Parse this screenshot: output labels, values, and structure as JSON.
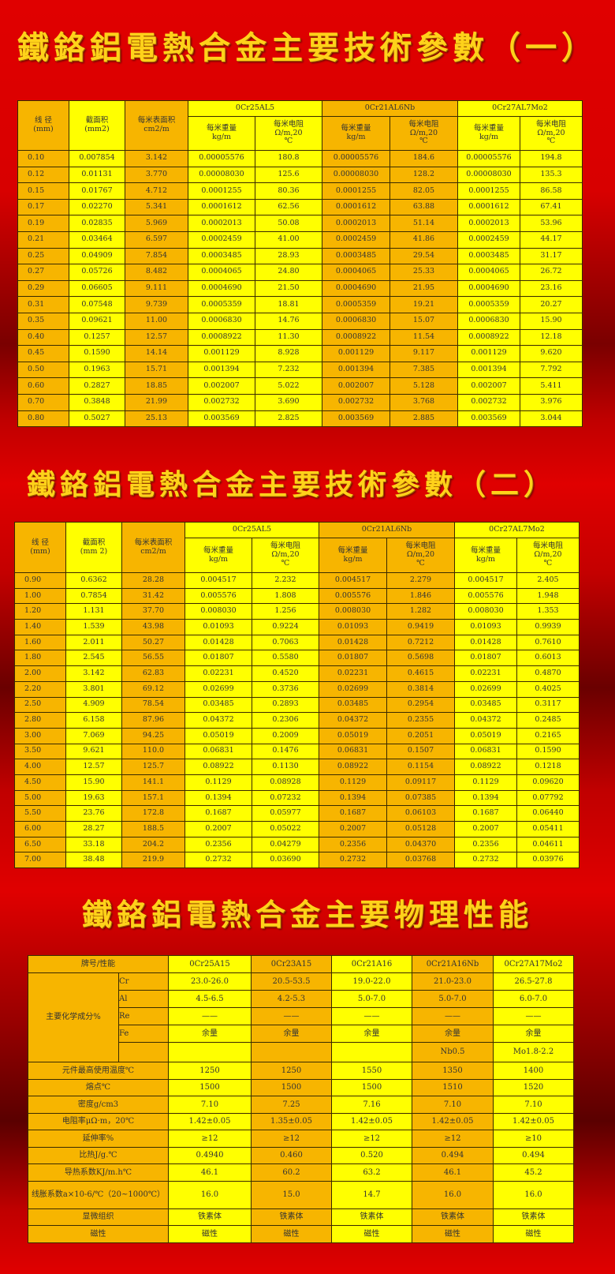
{
  "titles": [
    "鐵鉻鋁電熱合金主要技術參數（一）",
    "鐵鉻鋁電熱合金主要技術參數（二）",
    "鐵鉻鋁電熱合金主要物理性能"
  ],
  "spec_header": {
    "diameter": "线 径",
    "diameter_unit": "(mm)",
    "area": "截面积",
    "area_unit_1": "(mm2)",
    "area_unit_2": "(mm 2)",
    "surface": "每米表面积",
    "surface_unit": "cm2/m",
    "alloys": [
      "0Cr25AL5",
      "0Cr21AL6Nb",
      "0Cr27AL7Mo2"
    ],
    "weight": "每米重量",
    "weight_unit": "kg/m",
    "resistance": "每米电阻",
    "resistance_unit": "Ω/m,20",
    "resistance_unit2": "℃"
  },
  "table1_rows": [
    [
      "0.10",
      "0.007854",
      "3.142",
      "0.00005576",
      "180.8",
      "0.00005576",
      "184.6",
      "0.00005576",
      "194.8"
    ],
    [
      "0.12",
      "0.01131",
      "3.770",
      "0.00008030",
      "125.6",
      "0.00008030",
      "128.2",
      "0.00008030",
      "135.3"
    ],
    [
      "0.15",
      "0.01767",
      "4.712",
      "0.0001255",
      "80.36",
      "0.0001255",
      "82.05",
      "0.0001255",
      "86.58"
    ],
    [
      "0.17",
      "0.02270",
      "5.341",
      "0.0001612",
      "62.56",
      "0.0001612",
      "63.88",
      "0.0001612",
      "67.41"
    ],
    [
      "0.19",
      "0.02835",
      "5.969",
      "0.0002013",
      "50.08",
      "0.0002013",
      "51.14",
      "0.0002013",
      "53.96"
    ],
    [
      "0.21",
      "0.03464",
      "6.597",
      "0.0002459",
      "41.00",
      "0.0002459",
      "41.86",
      "0.0002459",
      "44.17"
    ],
    [
      "0.25",
      "0.04909",
      "7.854",
      "0.0003485",
      "28.93",
      "0.0003485",
      "29.54",
      "0.0003485",
      "31.17"
    ],
    [
      "0.27",
      "0.05726",
      "8.482",
      "0.0004065",
      "24.80",
      "0.0004065",
      "25.33",
      "0.0004065",
      "26.72"
    ],
    [
      "0.29",
      "0.06605",
      "9.111",
      "0.0004690",
      "21.50",
      "0.0004690",
      "21.95",
      "0.0004690",
      "23.16"
    ],
    [
      "0.31",
      "0.07548",
      "9.739",
      "0.0005359",
      "18.81",
      "0.0005359",
      "19.21",
      "0.0005359",
      "20.27"
    ],
    [
      "0.35",
      "0.09621",
      "11.00",
      "0.0006830",
      "14.76",
      "0.0006830",
      "15.07",
      "0.0006830",
      "15.90"
    ],
    [
      "0.40",
      "0.1257",
      "12.57",
      "0.0008922",
      "11.30",
      "0.0008922",
      "11.54",
      "0.0008922",
      "12.18"
    ],
    [
      "0.45",
      "0.1590",
      "14.14",
      "0.001129",
      "8.928",
      "0.001129",
      "9.117",
      "0.001129",
      "9.620"
    ],
    [
      "0.50",
      "0.1963",
      "15.71",
      "0.001394",
      "7.232",
      "0.001394",
      "7.385",
      "0.001394",
      "7.792"
    ],
    [
      "0.60",
      "0.2827",
      "18.85",
      "0.002007",
      "5.022",
      "0.002007",
      "5.128",
      "0.002007",
      "5.411"
    ],
    [
      "0.70",
      "0.3848",
      "21.99",
      "0.002732",
      "3.690",
      "0.002732",
      "3.768",
      "0.002732",
      "3.976"
    ],
    [
      "0.80",
      "0.5027",
      "25.13",
      "0.003569",
      "2.825",
      "0.003569",
      "2.885",
      "0.003569",
      "3.044"
    ]
  ],
  "table2_rows": [
    [
      "0.90",
      "0.6362",
      "28.28",
      "0.004517",
      "2.232",
      "0.004517",
      "2.279",
      "0.004517",
      "2.405"
    ],
    [
      "1.00",
      "0.7854",
      "31.42",
      "0.005576",
      "1.808",
      "0.005576",
      "1.846",
      "0.005576",
      "1.948"
    ],
    [
      "1.20",
      "1.131",
      "37.70",
      "0.008030",
      "1.256",
      "0.008030",
      "1.282",
      "0.008030",
      "1.353"
    ],
    [
      "1.40",
      "1.539",
      "43.98",
      "0.01093",
      "0.9224",
      "0.01093",
      "0.9419",
      "0.01093",
      "0.9939"
    ],
    [
      "1.60",
      "2.011",
      "50.27",
      "0.01428",
      "0.7063",
      "0.01428",
      "0.7212",
      "0.01428",
      "0.7610"
    ],
    [
      "1.80",
      "2.545",
      "56.55",
      "0.01807",
      "0.5580",
      "0.01807",
      "0.5698",
      "0.01807",
      "0.6013"
    ],
    [
      "2.00",
      "3.142",
      "62.83",
      "0.02231",
      "0.4520",
      "0.02231",
      "0.4615",
      "0.02231",
      "0.4870"
    ],
    [
      "2.20",
      "3.801",
      "69.12",
      "0.02699",
      "0.3736",
      "0.02699",
      "0.3814",
      "0.02699",
      "0.4025"
    ],
    [
      "2.50",
      "4.909",
      "78.54",
      "0.03485",
      "0.2893",
      "0.03485",
      "0.2954",
      "0.03485",
      "0.3117"
    ],
    [
      "2.80",
      "6.158",
      "87.96",
      "0.04372",
      "0.2306",
      "0.04372",
      "0.2355",
      "0.04372",
      "0.2485"
    ],
    [
      "3.00",
      "7.069",
      "94.25",
      "0.05019",
      "0.2009",
      "0.05019",
      "0.2051",
      "0.05019",
      "0.2165"
    ],
    [
      "3.50",
      "9.621",
      "110.0",
      "0.06831",
      "0.1476",
      "0.06831",
      "0.1507",
      "0.06831",
      "0.1590"
    ],
    [
      "4.00",
      "12.57",
      "125.7",
      "0.08922",
      "0.1130",
      "0.08922",
      "0.1154",
      "0.08922",
      "0.1218"
    ],
    [
      "4.50",
      "15.90",
      "141.1",
      "0.1129",
      "0.08928",
      "0.1129",
      "0.09117",
      "0.1129",
      "0.09620"
    ],
    [
      "5.00",
      "19.63",
      "157.1",
      "0.1394",
      "0.07232",
      "0.1394",
      "0.07385",
      "0.1394",
      "0.07792"
    ],
    [
      "5.50",
      "23.76",
      "172.8",
      "0.1687",
      "0.05977",
      "0.1687",
      "0.06103",
      "0.1687",
      "0.06440"
    ],
    [
      "6.00",
      "28.27",
      "188.5",
      "0.2007",
      "0.05022",
      "0.2007",
      "0.05128",
      "0.2007",
      "0.05411"
    ],
    [
      "6.50",
      "33.18",
      "204.2",
      "0.2356",
      "0.04279",
      "0.2356",
      "0.04370",
      "0.2356",
      "0.04611"
    ],
    [
      "7.00",
      "38.48",
      "219.9",
      "0.2732",
      "0.03690",
      "0.2732",
      "0.03768",
      "0.2732",
      "0.03976"
    ]
  ],
  "physical": {
    "header": [
      "牌号/性能",
      "0Cr25A15",
      "0Cr23A15",
      "0Cr21A16",
      "0Cr21A16Nb",
      "0Cr27A17Mo2"
    ],
    "composition_label": "主要化学成分%",
    "composition": [
      [
        "Cr",
        "23.0-26.0",
        "20.5-53.5",
        "19.0-22.0",
        "21.0-23.0",
        "26.5-27.8"
      ],
      [
        "Al",
        "4.5-6.5",
        "4.2-5.3",
        "5.0-7.0",
        "5.0-7.0",
        "6.0-7.0"
      ],
      [
        "Re",
        "——",
        "——",
        "——",
        "——",
        "——"
      ],
      [
        "Fe",
        "余量",
        "余量",
        "余量",
        "余量",
        "余量"
      ],
      [
        "",
        "",
        "",
        "",
        "Nb0.5",
        "Mo1.8-2.2"
      ]
    ],
    "rows": [
      [
        "元件最高使用温度℃",
        "1250",
        "1250",
        "1550",
        "1350",
        "1400"
      ],
      [
        "熔点℃",
        "1500",
        "1500",
        "1500",
        "1510",
        "1520"
      ],
      [
        "密度g/cm3",
        "7.10",
        "7.25",
        "7.16",
        "7.10",
        "7.10"
      ],
      [
        "电阻率μΩ·m，20℃",
        "1.42±0.05",
        "1.35±0.05",
        "1.42±0.05",
        "1.42±0.05",
        "1.42±0.05"
      ],
      [
        "延伸率%",
        "≥12",
        "≥12",
        "≥12",
        "≥12",
        "≥10"
      ],
      [
        "比热J/g.℃",
        "0.4940",
        "0.460",
        "0.520",
        "0.494",
        "0.494"
      ],
      [
        "导热系数KJ/m.h℃",
        "46.1",
        "60.2",
        "63.2",
        "46.1",
        "45.2"
      ],
      [
        "线胀系数a×10-6/℃（20~1000℃）",
        "16.0",
        "15.0",
        "14.7",
        "16.0",
        "16.0"
      ],
      [
        "显微组织",
        "铁素体",
        "铁素体",
        "铁素体",
        "铁素体",
        "铁素体"
      ],
      [
        "磁性",
        "磁性",
        "磁性",
        "磁性",
        "磁性",
        "磁性"
      ]
    ]
  },
  "colors": {
    "orange": "#f7b500",
    "yellow": "#ffff00",
    "title": "#ffd21a",
    "background": "#e00000"
  }
}
